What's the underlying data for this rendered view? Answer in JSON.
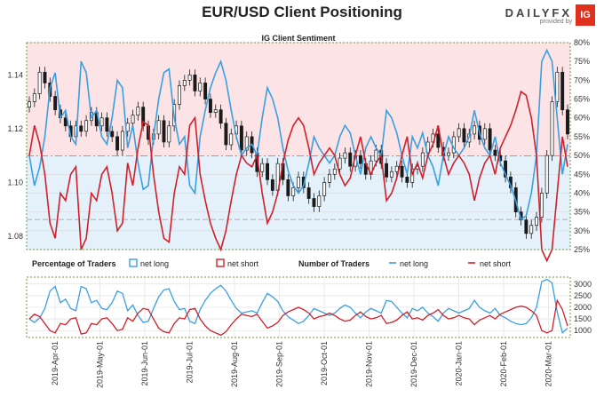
{
  "title": "EUR/USD Client Positioning",
  "brand": {
    "name": "DAILYFX",
    "sub": "provided by",
    "logo": "IG"
  },
  "colors": {
    "long": "#3aa0e0",
    "short": "#d0202a",
    "long_fill": "#e4f1fb",
    "short_fill": "#fbe3e6",
    "candle": "#1a1a1a"
  },
  "chart_data": [
    {
      "type": "candlestick+line",
      "title": "IG Client Sentiment",
      "y_left_ticks": [
        "1.08",
        "1.10",
        "1.12",
        "1.14"
      ],
      "y_left_range": [
        1.075,
        1.152
      ],
      "y_right_ticks": [
        "25%",
        "30%",
        "35%",
        "40%",
        "45%",
        "50%",
        "55%",
        "60%",
        "65%",
        "70%",
        "75%",
        "80%"
      ],
      "y_right_range": [
        25,
        80
      ],
      "price_close": [
        1.13,
        1.133,
        1.141,
        1.137,
        1.132,
        1.127,
        1.124,
        1.121,
        1.117,
        1.121,
        1.119,
        1.123,
        1.126,
        1.121,
        1.124,
        1.119,
        1.117,
        1.112,
        1.119,
        1.122,
        1.125,
        1.128,
        1.121,
        1.116,
        1.118,
        1.123,
        1.115,
        1.121,
        1.129,
        1.136,
        1.138,
        1.14,
        1.134,
        1.137,
        1.131,
        1.126,
        1.127,
        1.122,
        1.114,
        1.118,
        1.121,
        1.112,
        1.117,
        1.111,
        1.104,
        1.107,
        1.101,
        1.097,
        1.107,
        1.101,
        1.095,
        1.098,
        1.102,
        1.098,
        1.094,
        1.091,
        1.095,
        1.1,
        1.103,
        1.105,
        1.109,
        1.111,
        1.106,
        1.11,
        1.107,
        1.103,
        1.108,
        1.112,
        1.107,
        1.102,
        1.104,
        1.106,
        1.102,
        1.1,
        1.105,
        1.106,
        1.111,
        1.115,
        1.118,
        1.113,
        1.11,
        1.111,
        1.117,
        1.12,
        1.115,
        1.118,
        1.121,
        1.116,
        1.12,
        1.112,
        1.11,
        1.108,
        1.102,
        1.098,
        1.089,
        1.086,
        1.081,
        1.084,
        1.087,
        1.096,
        1.11,
        1.13,
        1.141,
        1.127,
        1.118
      ],
      "net_long_pct": [
        50,
        42,
        47,
        55,
        68,
        72,
        60,
        62,
        55,
        53,
        75,
        72,
        60,
        62,
        55,
        53,
        60,
        70,
        68,
        52,
        58,
        48,
        41,
        42,
        55,
        65,
        72,
        73,
        60,
        53,
        55,
        42,
        40,
        55,
        62,
        68,
        72,
        75,
        70,
        62,
        55,
        50,
        52,
        53,
        50,
        60,
        68,
        65,
        60,
        52,
        46,
        42,
        40,
        42,
        48,
        55,
        52,
        50,
        48,
        50,
        55,
        58,
        56,
        50,
        45,
        52,
        55,
        52,
        50,
        62,
        60,
        56,
        50,
        45,
        55,
        52,
        56,
        50,
        47,
        42,
        50,
        55,
        52,
        50,
        52,
        55,
        62,
        56,
        52,
        50,
        55,
        48,
        45,
        42,
        38,
        33,
        34,
        40,
        50,
        75,
        78,
        75,
        60,
        45,
        53
      ],
      "net_short_pct": [
        50,
        58,
        53,
        45,
        32,
        28,
        40,
        38,
        45,
        47,
        25,
        28,
        40,
        38,
        45,
        47,
        40,
        30,
        32,
        48,
        42,
        52,
        59,
        58,
        45,
        35,
        28,
        27,
        40,
        47,
        45,
        58,
        60,
        45,
        38,
        32,
        28,
        25,
        30,
        38,
        45,
        50,
        48,
        47,
        50,
        40,
        32,
        35,
        40,
        48,
        54,
        58,
        60,
        58,
        52,
        45,
        48,
        50,
        52,
        50,
        45,
        42,
        44,
        50,
        55,
        48,
        45,
        48,
        50,
        38,
        40,
        44,
        50,
        55,
        45,
        48,
        44,
        50,
        53,
        58,
        50,
        45,
        48,
        50,
        48,
        45,
        38,
        44,
        48,
        50,
        45,
        52,
        55,
        58,
        62,
        67,
        66,
        60,
        50,
        25,
        22,
        25,
        40,
        55,
        47
      ]
    },
    {
      "type": "line",
      "x_ticks": [
        "2019-Apr-01",
        "2019-May-01",
        "2019-Jun-01",
        "2019-Jul-01",
        "2019-Aug-01",
        "2019-Sep-01",
        "2019-Oct-01",
        "2019-Nov-01",
        "2019-Dec-01",
        "2020-Jan-01",
        "2020-Feb-01",
        "2020-Mar-01"
      ],
      "y_ticks": [
        "1000",
        "1500",
        "2000",
        "2500",
        "3000"
      ],
      "y_range": [
        700,
        3300
      ],
      "legend": {
        "percentage_label": "Percentage of Traders",
        "number_label": "Number of Traders",
        "net_long": "net long",
        "net_short": "net short"
      },
      "net_long_count": [
        1500,
        1350,
        1550,
        1950,
        2700,
        2900,
        2200,
        2350,
        1950,
        1850,
        2900,
        2800,
        2200,
        2300,
        1950,
        1900,
        2200,
        2700,
        2600,
        1850,
        2100,
        1650,
        1350,
        1400,
        1950,
        2450,
        2750,
        2800,
        2250,
        1900,
        1950,
        1400,
        1300,
        1900,
        2300,
        2600,
        2800,
        2950,
        2700,
        2300,
        1950,
        1750,
        1800,
        1850,
        1750,
        2200,
        2600,
        2450,
        2250,
        1850,
        1600,
        1450,
        1300,
        1400,
        1650,
        1950,
        1850,
        1750,
        1650,
        1750,
        1950,
        2100,
        2000,
        1750,
        1550,
        1800,
        1950,
        1850,
        1750,
        2300,
        2250,
        2000,
        1750,
        1550,
        1950,
        1850,
        2000,
        1750,
        1600,
        1400,
        1750,
        1950,
        1850,
        1750,
        1850,
        1950,
        2300,
        2000,
        1850,
        1750,
        1950,
        1650,
        1550,
        1400,
        1300,
        1250,
        1300,
        1550,
        2000,
        3100,
        3200,
        3050,
        1800,
        900,
        1100
      ],
      "net_short_count": [
        1500,
        1700,
        1600,
        1300,
        1000,
        900,
        1300,
        1250,
        1500,
        1550,
        850,
        900,
        1300,
        1250,
        1500,
        1550,
        1300,
        1000,
        1050,
        1550,
        1400,
        1750,
        1950,
        1900,
        1500,
        1100,
        950,
        900,
        1300,
        1550,
        1500,
        1900,
        1950,
        1500,
        1200,
        1000,
        900,
        800,
        950,
        1250,
        1500,
        1700,
        1650,
        1600,
        1700,
        1400,
        1100,
        1200,
        1350,
        1650,
        1800,
        1900,
        2000,
        1900,
        1750,
        1500,
        1600,
        1650,
        1750,
        1650,
        1500,
        1400,
        1450,
        1650,
        1800,
        1600,
        1500,
        1550,
        1650,
        1300,
        1350,
        1450,
        1650,
        1800,
        1500,
        1550,
        1450,
        1650,
        1750,
        1900,
        1650,
        1500,
        1550,
        1650,
        1550,
        1500,
        1250,
        1450,
        1550,
        1650,
        1500,
        1700,
        1800,
        1900,
        2000,
        2050,
        2000,
        1850,
        1650,
        1000,
        900,
        1000,
        2300,
        1900,
        1200
      ]
    }
  ]
}
